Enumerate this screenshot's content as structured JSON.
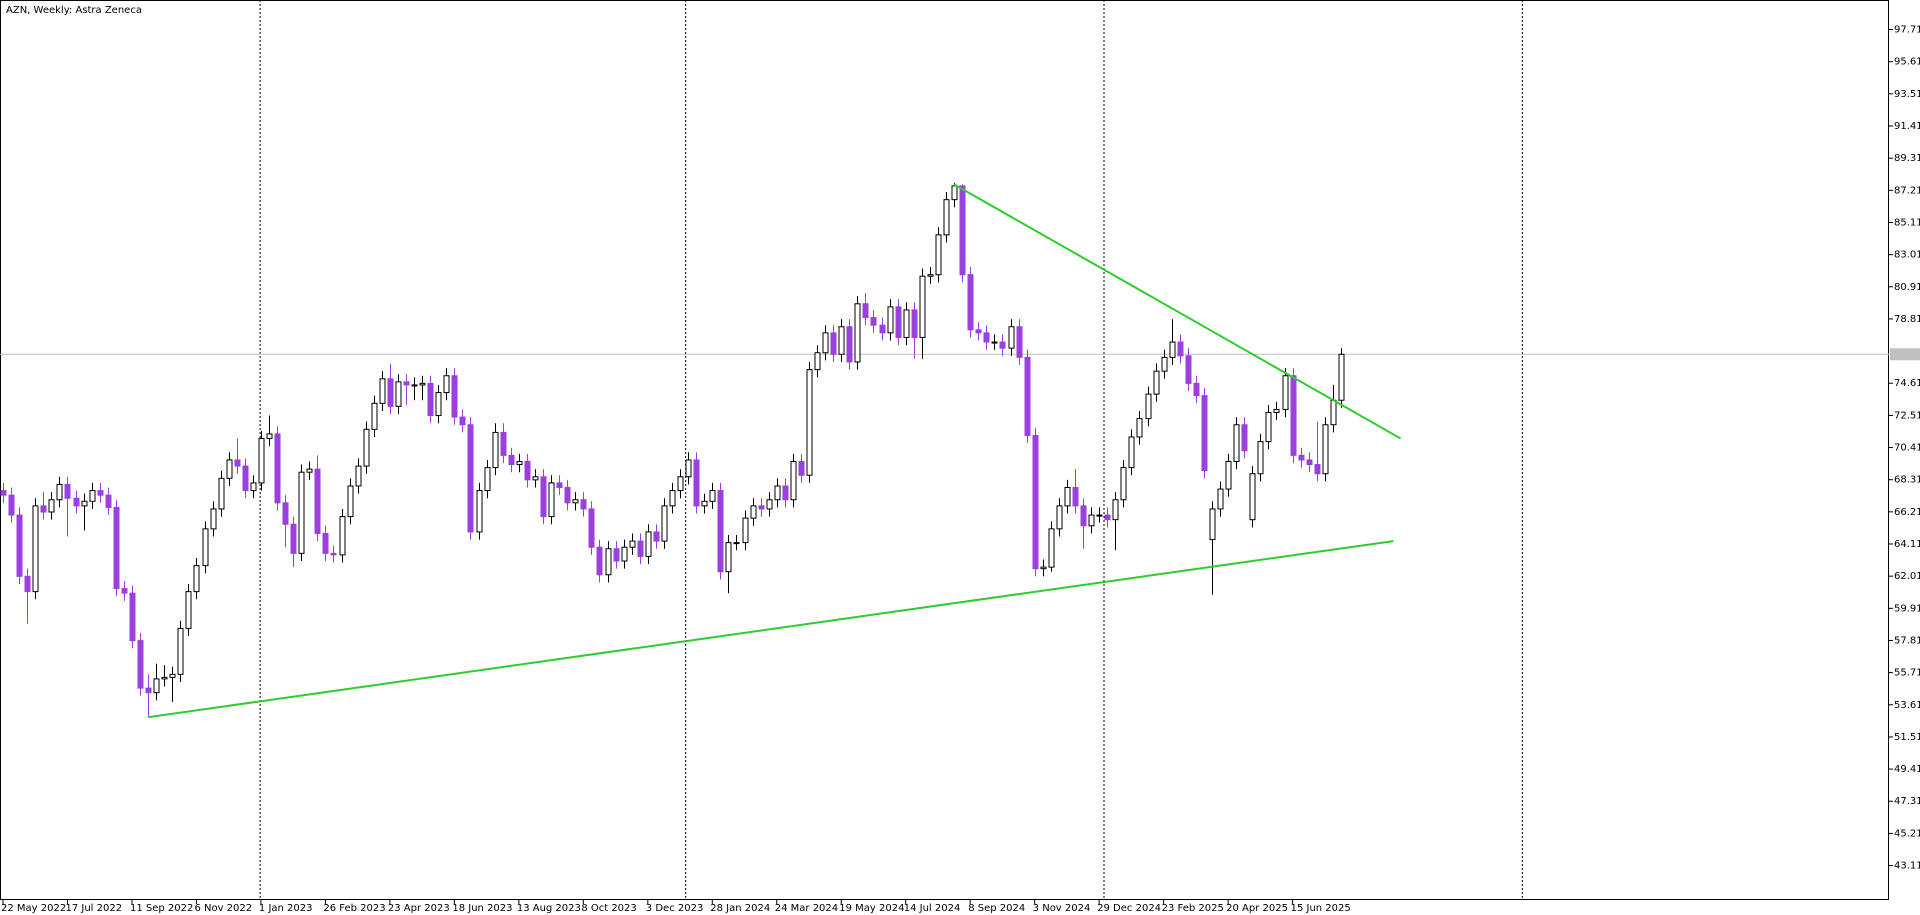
{
  "chart_data": {
    "type": "candlestick",
    "title": "AZN, Weekly:  Astra Zeneca",
    "categories": [
      "22 May 2022",
      null,
      null,
      null,
      null,
      null,
      null,
      null,
      "17 Jul 2022",
      null,
      null,
      null,
      null,
      null,
      null,
      null,
      "11 Sep 2022",
      null,
      null,
      null,
      null,
      null,
      null,
      null,
      "6 Nov 2022",
      null,
      null,
      null,
      null,
      null,
      null,
      null,
      "1 Jan 2023",
      null,
      null,
      null,
      null,
      null,
      null,
      null,
      "26 Feb 2023",
      null,
      null,
      null,
      null,
      null,
      null,
      null,
      "23 Apr 2023",
      null,
      null,
      null,
      null,
      null,
      null,
      null,
      "18 Jun 2023",
      null,
      null,
      null,
      null,
      null,
      null,
      null,
      "13 Aug 2023",
      null,
      null,
      null,
      null,
      null,
      null,
      null,
      "8 Oct 2023",
      null,
      null,
      null,
      null,
      null,
      null,
      null,
      "3 Dec 2023",
      null,
      null,
      null,
      null,
      null,
      null,
      null,
      "28 Jan 2024",
      null,
      null,
      null,
      null,
      null,
      null,
      null,
      "24 Mar 2024",
      null,
      null,
      null,
      null,
      null,
      null,
      null,
      "19 May 2024",
      null,
      null,
      null,
      null,
      null,
      null,
      null,
      "14 Jul 2024",
      null,
      null,
      null,
      null,
      null,
      null,
      null,
      "8 Sep 2024",
      null,
      null,
      null,
      null,
      null,
      null,
      null,
      "3 Nov 2024",
      null,
      null,
      null,
      null,
      null,
      null,
      null,
      "29 Dec 2024",
      null,
      null,
      null,
      null,
      null,
      null,
      null,
      "23 Feb 2025",
      null,
      null,
      null,
      null,
      null,
      null,
      null,
      "20 Apr 2025",
      null,
      null,
      null,
      null,
      null,
      null,
      null,
      "15 Jun 2025",
      null,
      null,
      null,
      null,
      null,
      null
    ],
    "open": [
      67.6,
      67.3,
      66.0,
      62.0,
      61.0,
      66.6,
      66.2,
      67.0,
      68.0,
      67.1,
      66.6,
      66.9,
      67.6,
      67.3,
      66.5,
      61.2,
      60.9,
      57.8,
      54.7,
      54.4,
      55.3,
      55.4,
      55.6,
      58.6,
      61.0,
      62.7,
      65.1,
      66.4,
      68.4,
      69.6,
      69.2,
      67.6,
      68.1,
      71.0,
      71.3,
      66.8,
      65.4,
      63.5,
      68.8,
      69.0,
      64.8,
      63.5,
      63.4,
      65.9,
      67.9,
      69.2,
      71.6,
      73.3,
      74.9,
      73.1,
      74.7,
      74.5,
      74.5,
      74.6,
      72.5,
      74.0,
      75.1,
      72.4,
      71.9,
      64.9,
      67.6,
      69.1,
      71.4,
      69.9,
      69.3,
      69.5,
      68.3,
      68.5,
      65.9,
      68.1,
      67.8,
      66.8,
      67.0,
      66.4,
      63.9,
      62.1,
      63.8,
      63.0,
      63.9,
      64.3,
      63.3,
      64.9,
      64.3,
      66.6,
      67.6,
      68.5,
      69.6,
      66.6,
      66.9,
      67.6,
      62.3,
      64.2,
      64.2,
      65.8,
      66.6,
      66.4,
      67.0,
      67.9,
      67.0,
      69.5,
      68.6,
      75.5,
      76.6,
      77.9,
      76.5,
      78.3,
      76.0,
      79.8,
      78.9,
      78.4,
      77.9,
      79.6,
      77.6,
      79.4,
      77.6,
      81.6,
      81.7,
      84.3,
      86.6,
      87.5,
      81.7,
      78.1,
      77.9,
      77.3,
      77.3,
      76.9,
      78.3,
      76.3,
      71.2,
      62.5,
      62.6,
      65.1,
      66.6,
      67.8,
      66.6,
      65.3,
      66.0,
      66.0,
      65.7,
      67.0,
      69.1,
      71.1,
      72.3,
      73.9,
      75.4,
      76.3,
      77.3,
      76.4,
      74.6,
      73.8,
      64.4,
      66.4,
      67.7,
      69.5,
      71.9,
      65.7,
      68.7,
      70.8,
      72.7,
      72.9,
      75.1,
      69.9,
      69.6,
      69.3,
      68.7,
      71.9,
      73.5
    ],
    "high": [
      68.1,
      67.8,
      66.5,
      62.5,
      67.1,
      67.5,
      67.5,
      68.5,
      68.5,
      67.6,
      67.4,
      68.1,
      68.1,
      67.8,
      67.0,
      61.7,
      61.4,
      58.3,
      55.6,
      56.3,
      56.2,
      56.1,
      59.1,
      61.5,
      63.2,
      65.6,
      66.9,
      68.9,
      70.1,
      71.0,
      69.7,
      68.6,
      71.5,
      72.5,
      71.8,
      67.3,
      65.9,
      69.3,
      69.5,
      69.9,
      65.3,
      64.0,
      66.4,
      68.4,
      69.7,
      72.1,
      73.8,
      75.4,
      75.9,
      75.2,
      75.2,
      75.0,
      75.1,
      75.1,
      74.5,
      75.6,
      75.6,
      72.9,
      72.4,
      68.1,
      69.6,
      72.0,
      72.0,
      70.4,
      70.0,
      70.0,
      69.0,
      69.0,
      68.6,
      68.6,
      68.3,
      67.5,
      67.5,
      66.9,
      64.4,
      64.3,
      64.3,
      64.4,
      64.8,
      64.8,
      65.4,
      65.4,
      67.1,
      68.1,
      69.0,
      70.1,
      70.1,
      67.4,
      68.1,
      68.1,
      64.7,
      64.7,
      66.3,
      67.1,
      67.1,
      67.5,
      68.4,
      68.4,
      70.0,
      70.0,
      76.0,
      77.1,
      78.4,
      78.4,
      78.8,
      78.8,
      80.3,
      80.5,
      79.4,
      78.9,
      80.1,
      80.1,
      79.9,
      79.9,
      82.1,
      82.2,
      84.8,
      87.1,
      87.7,
      87.6,
      82.2,
      78.6,
      78.4,
      77.8,
      77.8,
      78.8,
      78.8,
      76.8,
      71.7,
      63.1,
      65.6,
      67.1,
      68.3,
      69.0,
      67.1,
      66.5,
      66.5,
      66.5,
      67.5,
      69.6,
      71.6,
      72.8,
      74.4,
      75.9,
      76.8,
      78.8,
      77.8,
      76.9,
      75.1,
      74.3,
      66.9,
      68.2,
      70.0,
      72.4,
      72.4,
      69.2,
      71.3,
      73.2,
      73.4,
      75.6,
      75.6,
      70.4,
      70.1,
      72.1,
      72.4,
      74.5,
      76.9
    ],
    "low": [
      66.8,
      65.5,
      61.5,
      58.9,
      60.5,
      65.7,
      65.7,
      66.5,
      64.6,
      66.1,
      65.0,
      66.4,
      66.8,
      66.0,
      60.7,
      60.4,
      57.3,
      54.2,
      52.8,
      53.9,
      54.8,
      53.8,
      55.1,
      58.1,
      60.5,
      62.2,
      64.6,
      65.9,
      67.9,
      68.7,
      67.1,
      67.1,
      67.6,
      70.5,
      66.3,
      63.9,
      62.6,
      63.0,
      68.3,
      64.3,
      63.0,
      62.9,
      62.9,
      65.4,
      67.4,
      68.7,
      71.1,
      72.8,
      72.6,
      72.6,
      73.2,
      73.5,
      73.5,
      72.0,
      72.0,
      73.5,
      71.9,
      71.4,
      64.4,
      64.4,
      67.1,
      68.6,
      69.4,
      68.8,
      68.8,
      67.8,
      67.8,
      65.4,
      65.4,
      67.3,
      66.3,
      66.3,
      65.9,
      63.4,
      61.6,
      61.6,
      62.5,
      62.5,
      63.4,
      62.8,
      62.8,
      63.8,
      63.8,
      66.1,
      67.1,
      68.0,
      66.1,
      66.1,
      66.4,
      61.8,
      60.9,
      63.7,
      63.7,
      65.3,
      65.9,
      65.9,
      66.5,
      66.5,
      66.5,
      68.1,
      68.1,
      75.0,
      76.1,
      76.0,
      76.0,
      75.5,
      75.5,
      78.4,
      77.9,
      77.4,
      77.4,
      77.1,
      77.1,
      76.2,
      76.2,
      81.1,
      81.2,
      83.8,
      86.1,
      81.2,
      77.6,
      77.4,
      76.8,
      76.8,
      76.4,
      76.4,
      75.8,
      70.7,
      62.0,
      62.0,
      62.3,
      64.6,
      66.1,
      66.1,
      63.8,
      64.8,
      65.5,
      65.2,
      63.7,
      66.5,
      68.6,
      70.6,
      71.8,
      73.4,
      74.9,
      75.8,
      75.9,
      74.1,
      73.3,
      68.4,
      60.8,
      65.9,
      67.2,
      69.0,
      69.7,
      65.2,
      68.2,
      70.3,
      72.2,
      72.4,
      69.4,
      69.1,
      68.8,
      68.2,
      68.2,
      71.4,
      73.0
    ],
    "close": [
      67.3,
      66.0,
      62.0,
      61.0,
      66.6,
      66.2,
      67.0,
      68.0,
      67.1,
      66.6,
      66.9,
      67.6,
      67.3,
      66.5,
      61.2,
      60.9,
      57.8,
      54.7,
      54.4,
      55.3,
      55.4,
      55.6,
      58.6,
      61.0,
      62.7,
      65.1,
      66.4,
      68.4,
      69.6,
      69.2,
      67.6,
      68.1,
      71.0,
      71.3,
      66.8,
      65.4,
      63.5,
      68.8,
      69.0,
      64.8,
      63.5,
      63.4,
      65.9,
      67.9,
      69.2,
      71.6,
      73.3,
      74.9,
      73.1,
      74.7,
      74.5,
      74.5,
      74.6,
      72.5,
      74.0,
      75.1,
      72.4,
      71.9,
      64.9,
      67.6,
      69.1,
      71.4,
      69.9,
      69.3,
      69.5,
      68.3,
      68.5,
      65.9,
      68.1,
      67.8,
      66.8,
      67.0,
      66.4,
      63.9,
      62.1,
      63.8,
      63.0,
      63.9,
      64.3,
      63.3,
      64.9,
      64.3,
      66.6,
      67.6,
      68.5,
      69.6,
      66.6,
      66.9,
      67.6,
      62.3,
      64.2,
      64.2,
      65.8,
      66.6,
      66.4,
      67.0,
      67.9,
      67.0,
      69.5,
      68.6,
      75.5,
      76.6,
      77.9,
      76.5,
      78.3,
      76.0,
      79.8,
      78.9,
      78.4,
      77.9,
      79.6,
      77.6,
      79.4,
      77.6,
      81.6,
      81.7,
      84.3,
      86.6,
      87.5,
      81.7,
      78.1,
      77.9,
      77.3,
      77.3,
      76.9,
      78.3,
      76.3,
      71.2,
      62.5,
      62.6,
      65.1,
      66.6,
      67.8,
      66.6,
      65.3,
      66.0,
      66.0,
      65.7,
      67.0,
      69.1,
      71.1,
      72.3,
      73.9,
      75.4,
      76.3,
      77.3,
      76.4,
      74.6,
      73.8,
      68.9,
      66.4,
      67.7,
      69.5,
      71.9,
      70.2,
      68.7,
      70.8,
      72.7,
      72.9,
      75.1,
      69.9,
      69.6,
      69.3,
      68.7,
      71.9,
      73.5,
      76.5
    ],
    "up_color": "#ffffff",
    "down_color": "#9b3fdf",
    "ylim": [
      40.86,
      99.64
    ],
    "yticks": [
      97.71,
      95.61,
      93.51,
      91.41,
      89.31,
      87.21,
      85.11,
      83.01,
      80.91,
      78.81,
      74.61,
      72.51,
      70.41,
      68.31,
      66.21,
      64.11,
      62.01,
      59.91,
      57.81,
      55.71,
      53.61,
      51.51,
      49.41,
      47.31,
      45.21,
      43.11
    ],
    "last_price": 76.5,
    "period_separators": [
      31.9,
      84.7,
      136.6,
      188.5
    ],
    "trendlines": [
      {
        "color": "#2ecc2e",
        "x": [
          118,
          173.4
        ],
        "y": [
          87.6,
          71.0
        ]
      },
      {
        "color": "#2ecc2e",
        "x": [
          18,
          172.5
        ],
        "y": [
          52.8,
          64.3
        ]
      }
    ],
    "grid": false
  }
}
